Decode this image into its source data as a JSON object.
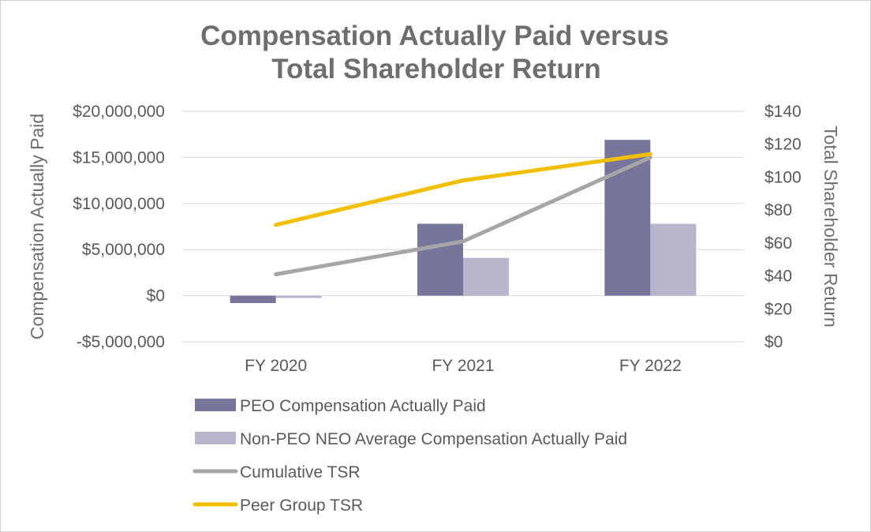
{
  "chart_data": {
    "type": "bar",
    "title_lines": [
      "Compensation Actually Paid versus",
      "Total Shareholder Return"
    ],
    "categories": [
      "FY 2020",
      "FY 2021",
      "FY 2022"
    ],
    "ylabel": "Compensation Actually Paid",
    "y2label": "Total Shareholder Return",
    "ylim": [
      -5000000,
      20000000
    ],
    "y2lim": [
      0,
      140
    ],
    "yticks": [
      -5000000,
      0,
      5000000,
      10000000,
      15000000,
      20000000
    ],
    "ytick_labels": [
      "-$5,000,000",
      "$0",
      "$5,000,000",
      "$10,000,000",
      "$15,000,000",
      "$20,000,000"
    ],
    "y2ticks": [
      0,
      20,
      40,
      60,
      80,
      100,
      120,
      140
    ],
    "y2tick_labels": [
      "$0",
      "$20",
      "$40",
      "$60",
      "$80",
      "$100",
      "$120",
      "$140"
    ],
    "grid": true,
    "legend_position": "bottom",
    "series": [
      {
        "name": "PEO Compensation Actually Paid",
        "kind": "bar",
        "axis": "left",
        "color": "#76769a",
        "values": [
          -800000,
          7800000,
          16900000
        ]
      },
      {
        "name": "Non-PEO NEO Average Compensation Actually Paid",
        "kind": "bar",
        "axis": "left",
        "color": "#b7b5cb",
        "values": [
          -250000,
          4100000,
          7800000
        ]
      },
      {
        "name": "Cumulative TSR",
        "kind": "line",
        "axis": "right",
        "color": "#a6a6a6",
        "values": [
          41,
          61,
          112
        ]
      },
      {
        "name": "Peer Group TSR",
        "kind": "line",
        "axis": "right",
        "color": "#f2bf00",
        "values": [
          71,
          98,
          114
        ]
      }
    ]
  }
}
